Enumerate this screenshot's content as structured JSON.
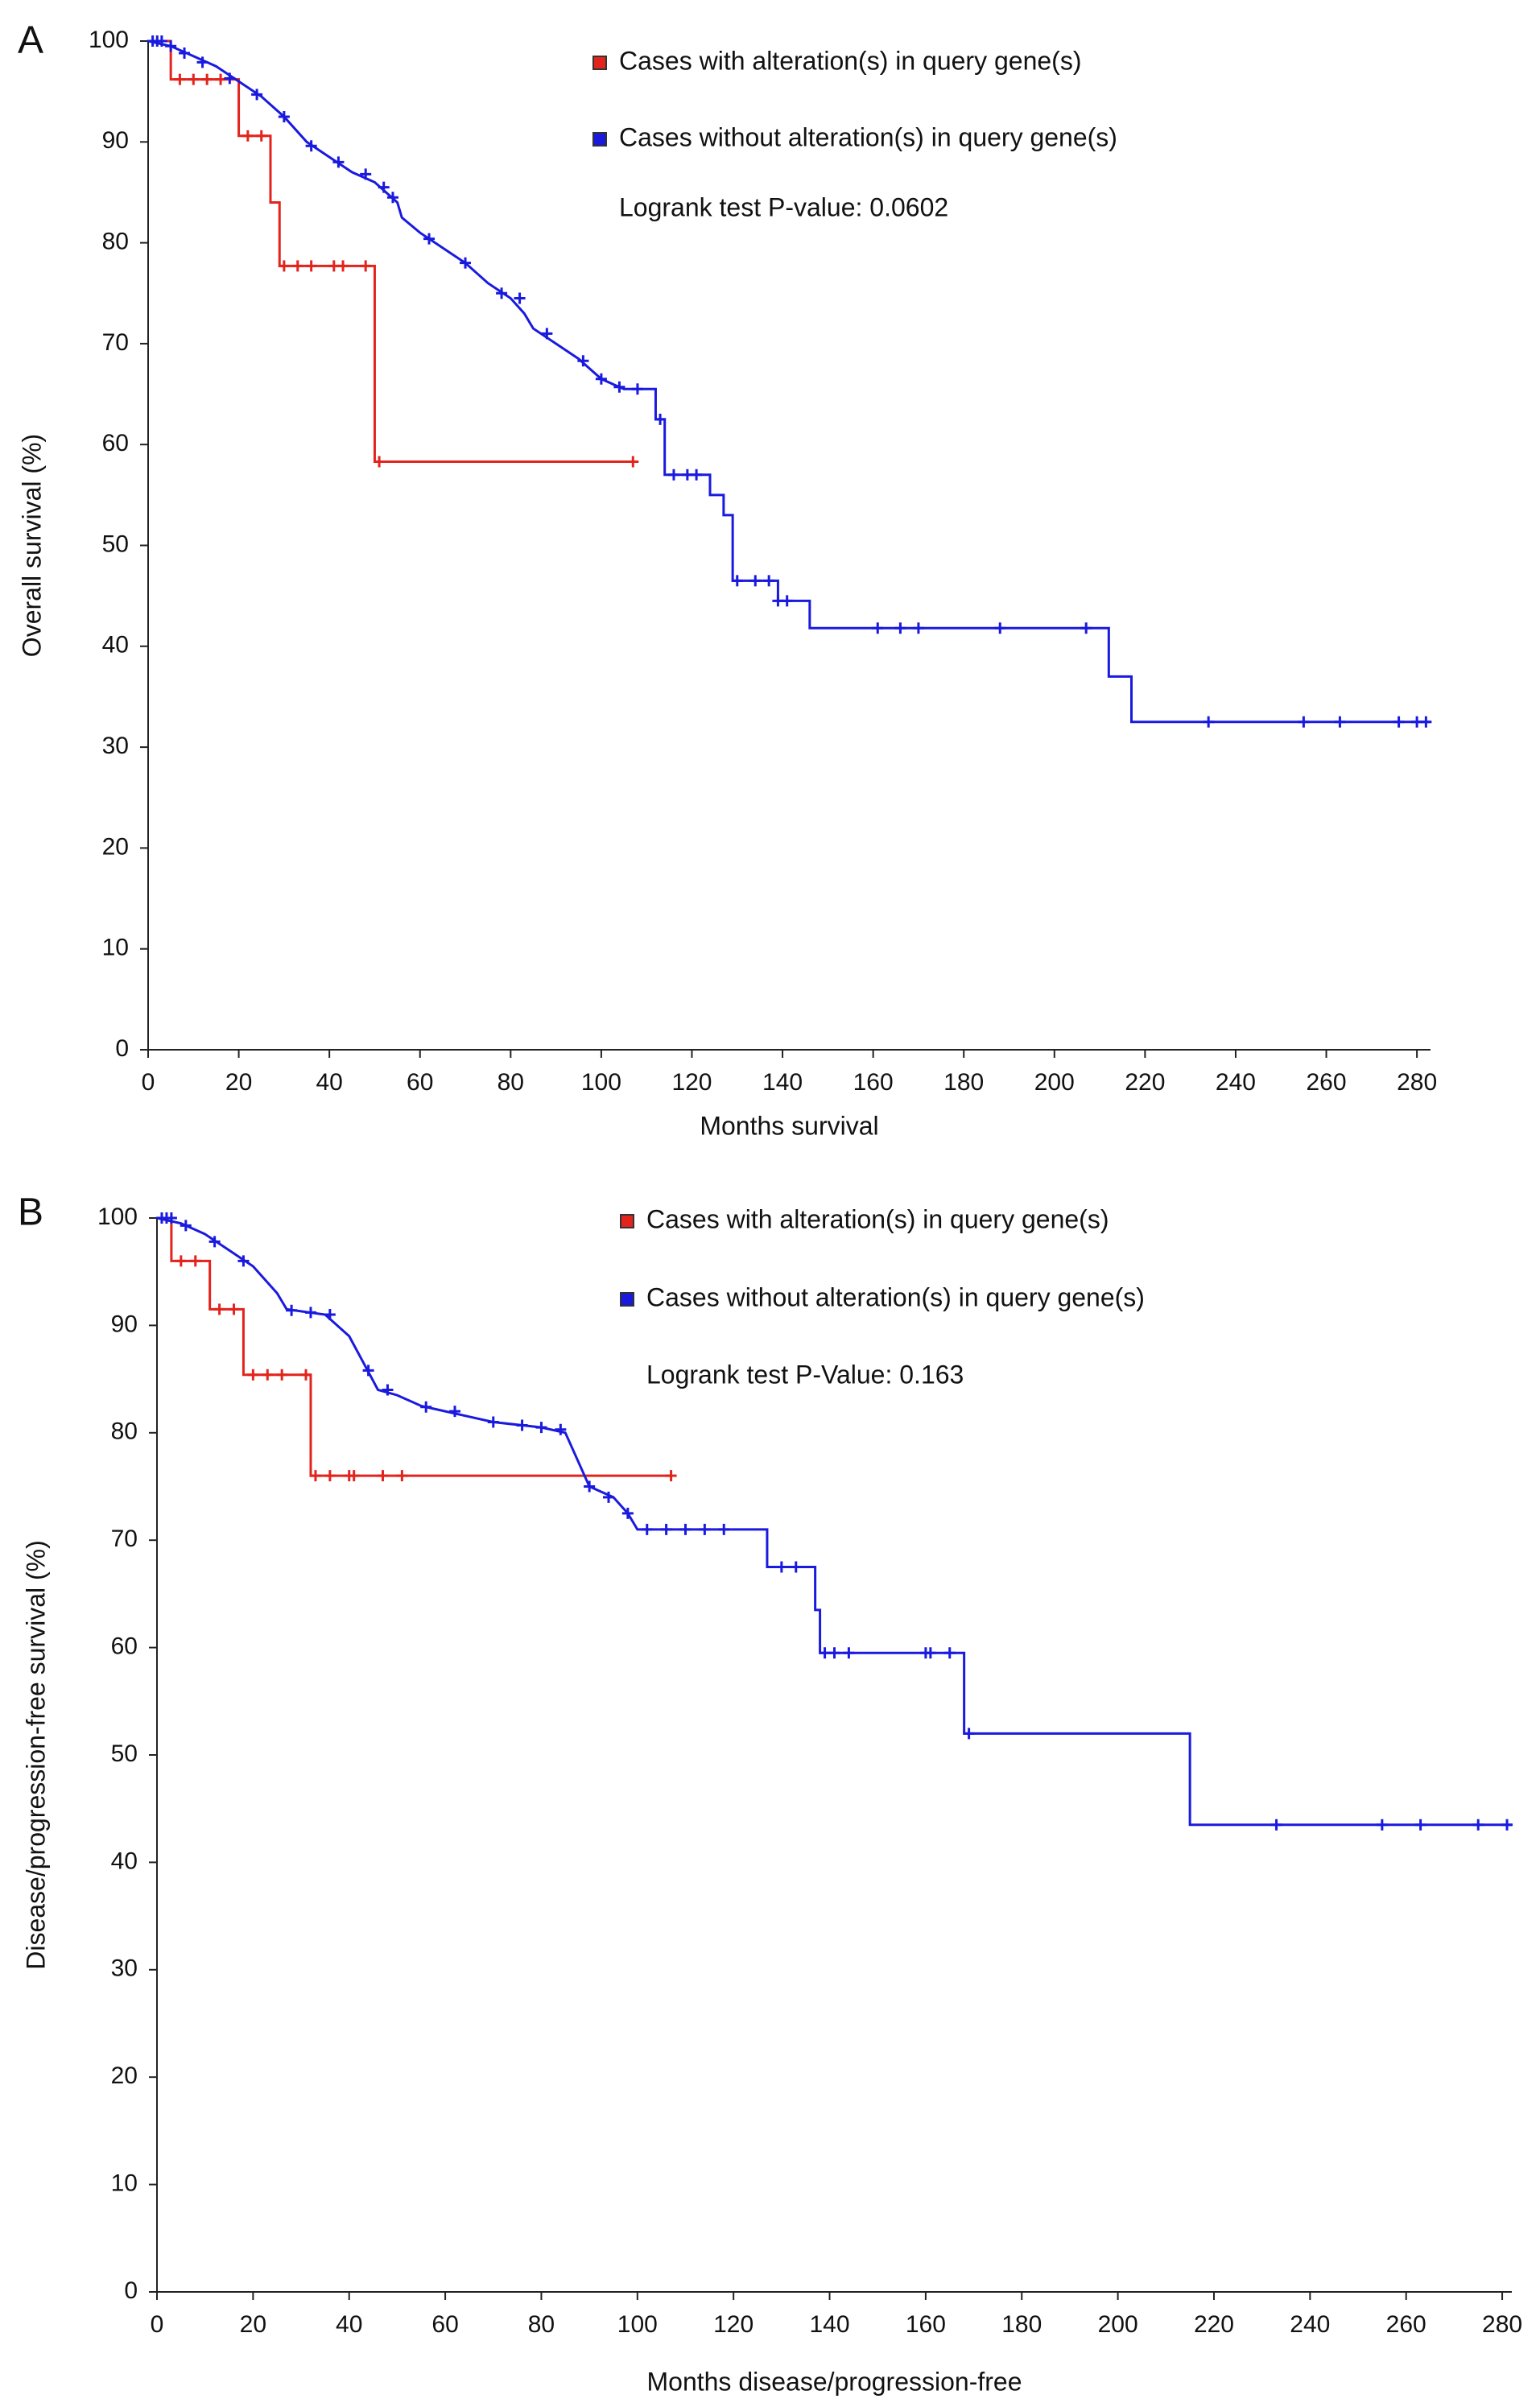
{
  "chart_data": [
    {
      "type": "line",
      "panel_label": "A",
      "x_label": "Months survival",
      "y_label": "Overall survival (%)",
      "annotation": "Logrank test P-value: 0.0602",
      "xlim": [
        0,
        283
      ],
      "ylim": [
        0,
        100
      ],
      "xticks": [
        0,
        20,
        40,
        60,
        80,
        100,
        120,
        140,
        160,
        180,
        200,
        220,
        240,
        260,
        280
      ],
      "yticks": [
        0,
        10,
        20,
        30,
        40,
        50,
        60,
        70,
        80,
        90,
        100
      ],
      "series": [
        {
          "name": "Cases with alteration(s) in query gene(s)",
          "color": "#e3241d",
          "x": [
            0,
            5,
            5,
            20,
            20,
            27,
            27,
            29,
            29,
            50,
            50,
            107
          ],
          "values": [
            100,
            100,
            96.2,
            96.2,
            90.6,
            90.6,
            84,
            84,
            77.7,
            77.7,
            58.3,
            58.3
          ],
          "censored_x": [
            7,
            10,
            13,
            16,
            22,
            25,
            30,
            33,
            36,
            41,
            43,
            48,
            51,
            107
          ],
          "censored_values": [
            96.2,
            96.2,
            96.2,
            96.2,
            90.6,
            90.6,
            77.7,
            77.7,
            77.7,
            77.7,
            77.7,
            77.7,
            58.3,
            58.3
          ]
        },
        {
          "name": "Cases without alteration(s) in query gene(s)",
          "color": "#1a1adf",
          "x": [
            0,
            5,
            10,
            15,
            20,
            25,
            30,
            35,
            40,
            45,
            50,
            55,
            56,
            60,
            65,
            70,
            75,
            80,
            83,
            85,
            90,
            95,
            100,
            105,
            112,
            112,
            114,
            114,
            124,
            124,
            127,
            127,
            129,
            129,
            139,
            139,
            146,
            146,
            212,
            212,
            217,
            217,
            283
          ],
          "values": [
            100,
            99.5,
            98.5,
            97.5,
            96,
            94.5,
            92.5,
            90,
            88.5,
            87,
            86,
            84,
            82.5,
            81,
            79.5,
            78,
            76,
            74.5,
            73,
            71.5,
            70,
            68.5,
            66.5,
            65.5,
            65.5,
            62.5,
            62.5,
            57,
            57,
            55,
            55,
            53,
            53,
            46.5,
            46.5,
            44.5,
            44.5,
            41.8,
            41.8,
            37,
            37,
            32.5,
            32.5
          ],
          "censored_x": [
            1,
            2,
            3,
            5,
            8,
            12,
            18,
            24,
            30,
            36,
            42,
            48,
            52,
            54,
            62,
            70,
            78,
            82,
            88,
            96,
            100,
            104,
            108,
            113,
            116,
            119,
            121,
            130,
            134,
            137,
            139,
            141,
            161,
            166,
            170,
            188,
            207,
            234,
            255,
            263,
            276,
            280,
            282
          ],
          "censored_values": [
            100,
            100,
            100,
            99.5,
            98.8,
            97.9,
            96.3,
            94.7,
            92.5,
            89.6,
            88,
            86.8,
            85.5,
            84.5,
            80.4,
            78,
            75,
            74.5,
            71,
            68.3,
            66.5,
            65.7,
            65.5,
            62.5,
            57,
            57,
            57,
            46.5,
            46.5,
            46.5,
            44.5,
            44.5,
            41.8,
            41.8,
            41.8,
            41.8,
            41.8,
            32.5,
            32.5,
            32.5,
            32.5,
            32.5,
            32.5
          ]
        }
      ]
    },
    {
      "type": "line",
      "panel_label": "B",
      "x_label": "Months disease/progression-free",
      "y_label": "Disease/progression-free survival (%)",
      "annotation": "Logrank test P-Value: 0.163",
      "xlim": [
        0,
        282
      ],
      "ylim": [
        0,
        100
      ],
      "xticks": [
        0,
        20,
        40,
        60,
        80,
        100,
        120,
        140,
        160,
        180,
        200,
        220,
        240,
        260,
        280
      ],
      "yticks": [
        0,
        10,
        20,
        30,
        40,
        50,
        60,
        70,
        80,
        90,
        100
      ],
      "series": [
        {
          "name": "Cases with alteration(s) in query gene(s)",
          "color": "#e3241d",
          "x": [
            0,
            3,
            3,
            11,
            11,
            18,
            18,
            32,
            32,
            107
          ],
          "values": [
            100,
            100,
            96,
            96,
            91.5,
            91.5,
            85.4,
            85.4,
            76,
            76
          ],
          "censored_x": [
            5,
            8,
            13,
            16,
            20,
            23,
            26,
            31,
            33,
            36,
            40,
            41,
            47,
            51,
            107
          ],
          "censored_values": [
            96,
            96,
            91.5,
            91.5,
            85.4,
            85.4,
            85.4,
            85.4,
            76,
            76,
            76,
            76,
            76,
            76,
            76
          ]
        },
        {
          "name": "Cases without alteration(s) in query gene(s)",
          "color": "#1a1adf",
          "x": [
            0,
            5,
            10,
            15,
            20,
            25,
            27,
            35,
            40,
            43,
            46,
            50,
            55,
            60,
            65,
            70,
            80,
            85,
            88,
            90,
            95,
            98,
            100,
            127,
            127,
            137,
            137,
            138,
            138,
            168,
            168,
            215,
            215,
            282
          ],
          "values": [
            100,
            99.5,
            98.5,
            97,
            95.5,
            93,
            91.5,
            91,
            89,
            86.5,
            84,
            83.5,
            82.5,
            82,
            81.5,
            81,
            80.5,
            80,
            77,
            75,
            74,
            72.5,
            71,
            71,
            67.5,
            67.5,
            63.5,
            63.5,
            59.5,
            59.5,
            52,
            52,
            43.5,
            43.5
          ],
          "censored_x": [
            1,
            2,
            3,
            6,
            12,
            18,
            28,
            32,
            36,
            44,
            48,
            56,
            62,
            70,
            76,
            80,
            84,
            90,
            94,
            98,
            102,
            106,
            110,
            114,
            118,
            130,
            133,
            139,
            141,
            144,
            160,
            161,
            165,
            169,
            233,
            255,
            263,
            275,
            281
          ],
          "censored_values": [
            100,
            100,
            100,
            99.3,
            97.8,
            96,
            91.4,
            91.2,
            91,
            85.8,
            84,
            82.4,
            82,
            81,
            80.7,
            80.5,
            80.3,
            75,
            74,
            72.5,
            71,
            71,
            71,
            71,
            71,
            67.5,
            67.5,
            59.5,
            59.5,
            59.5,
            59.5,
            59.5,
            59.5,
            52,
            43.5,
            43.5,
            43.5,
            43.5,
            43.5
          ]
        }
      ]
    }
  ]
}
